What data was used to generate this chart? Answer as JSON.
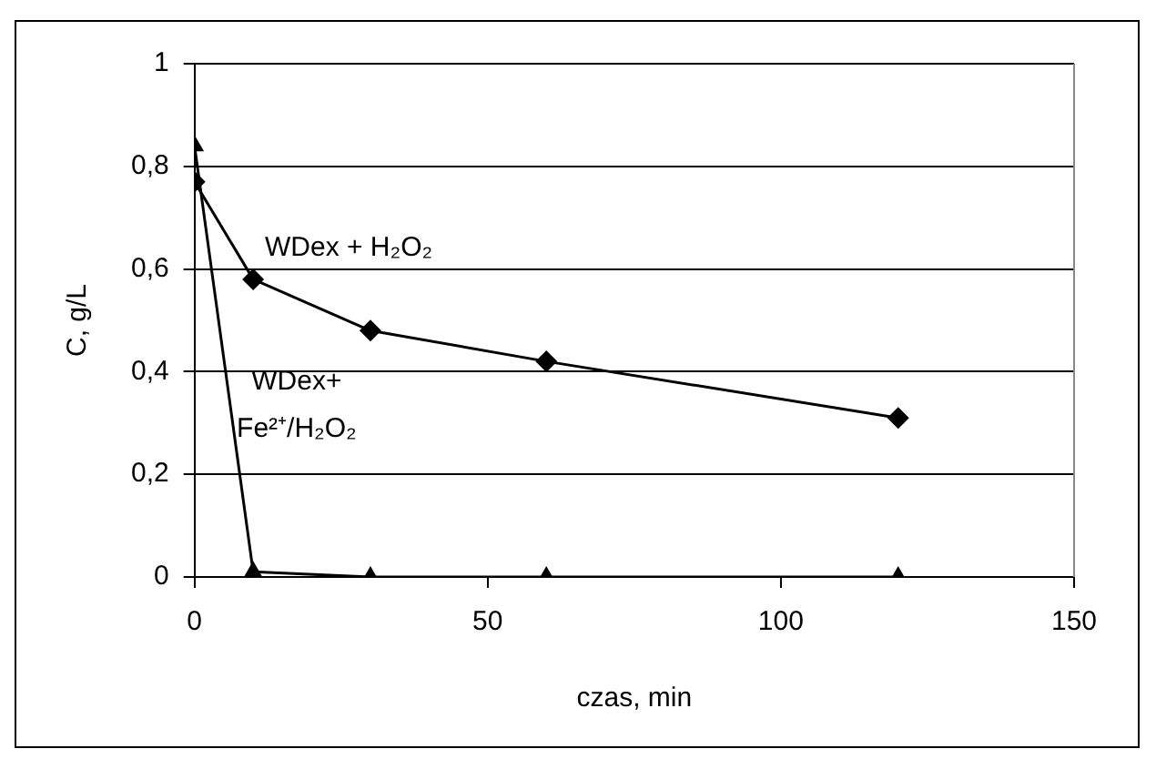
{
  "chart_data": {
    "type": "line",
    "xlabel": "czas, min",
    "ylabel": "C, g/L",
    "xlim": [
      0,
      150
    ],
    "xticks": [
      0,
      50,
      100,
      150
    ],
    "ylim": [
      0,
      1
    ],
    "yticks": [
      0,
      {
        "value": 0.2,
        "label": "0,2"
      },
      {
        "value": 0.4,
        "label": "0,4"
      },
      {
        "value": 0.6,
        "label": "0,6"
      },
      {
        "value": 0.8,
        "label": "0,8"
      },
      1
    ],
    "grid": "y",
    "legend": false,
    "series": [
      {
        "name": "WDex + H₂O₂",
        "color": "#000000",
        "marker": "diamond",
        "x": [
          0,
          10,
          30,
          60,
          120
        ],
        "values": [
          0.77,
          0.58,
          0.48,
          0.42,
          0.31
        ]
      },
      {
        "name": "WDex+\nFe²⁺/H₂O₂",
        "color": "#000000",
        "marker": "triangle",
        "x": [
          0,
          10,
          30,
          60,
          120
        ],
        "values": [
          0.84,
          0.01,
          0,
          0,
          0
        ]
      }
    ]
  }
}
